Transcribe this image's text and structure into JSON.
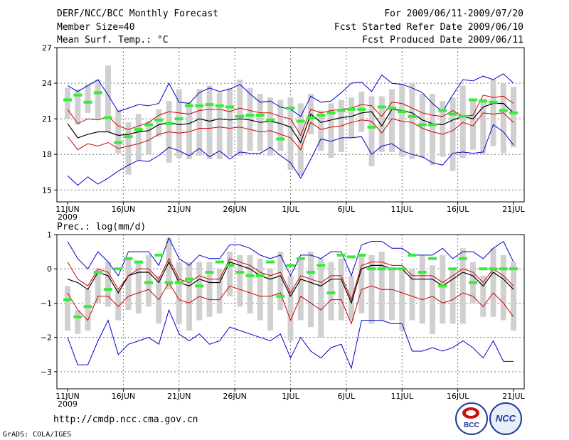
{
  "header": {
    "title": "DERF/NCC/BCC Monthly Forecast",
    "member_size": "Member Size=40",
    "variable": "Mean Surf. Temp.: °C",
    "period": "For 2009/06/11-2009/07/20",
    "fcst_started": "Fcst Started Refer Date 2009/06/10",
    "fcst_produced": "Fcst Produced Date 2009/06/11"
  },
  "footer": {
    "url": "http://cmdp.ncc.cma.gov.cn",
    "grads_credit": "GrADS: COLA/IGES",
    "logo_bcc": "BCC",
    "logo_ncc": "NCC"
  },
  "colors": {
    "mean": "#000000",
    "spread": "#cc0000",
    "extreme": "#0000cc",
    "box": "#d0d0d0",
    "obs": "#33ee33",
    "grid": "#777777"
  },
  "chart_data": [
    {
      "type": "line",
      "title": "Mean Surf. Temp.: °C",
      "x_tick_labels": [
        "11JUN",
        "16JUN",
        "21JUN",
        "26JUN",
        "1JUL",
        "6JUL",
        "11JUL",
        "16JUL",
        "21JUL"
      ],
      "x_year_label": "2009",
      "xlim": [
        0,
        40
      ],
      "ylim": [
        14,
        27
      ],
      "y_ticks": [
        15,
        18,
        21,
        24,
        27
      ],
      "series": [
        {
          "name": "ensemble max",
          "values": [
            16.2,
            15.4,
            16.1,
            15.5,
            16.0,
            16.6,
            17.1,
            17.5,
            17.4,
            17.9,
            18.6,
            18.3,
            17.9,
            18.5,
            17.8,
            18.3,
            17.6,
            18.2,
            18.1,
            18.1,
            18.6,
            17.9,
            17.3,
            16.0,
            17.6,
            19.3,
            19.1,
            19.4,
            19.4,
            19.5,
            18.0,
            18.7,
            18.9,
            18.3,
            18.0,
            17.8,
            17.3,
            17.1,
            18.1,
            18.2,
            18.1,
            18.2,
            20.5,
            19.9,
            18.8
          ]
        },
        {
          "name": "ensemble upper",
          "values": [
            21.8,
            20.6,
            21.0,
            20.9,
            21.2,
            20.4,
            20.1,
            20.4,
            20.7,
            21.3,
            21.6,
            21.5,
            21.4,
            21.7,
            21.8,
            21.8,
            21.6,
            21.9,
            21.7,
            21.5,
            21.5,
            21.2,
            21.0,
            19.6,
            21.8,
            21.5,
            21.7,
            21.8,
            21.9,
            22.2,
            22.1,
            21.2,
            22.4,
            22.3,
            21.9,
            21.5,
            21.3,
            21.2,
            21.7,
            21.2,
            21.3,
            23.0,
            22.8,
            22.9,
            22.3
          ]
        },
        {
          "name": "ensemble mean",
          "values": [
            20.6,
            19.4,
            19.7,
            19.9,
            19.9,
            19.6,
            19.7,
            19.9,
            20.0,
            20.5,
            20.7,
            20.5,
            20.6,
            21.0,
            20.8,
            21.0,
            20.9,
            21.0,
            20.9,
            20.7,
            20.8,
            20.6,
            20.3,
            19.0,
            21.4,
            20.7,
            20.9,
            21.1,
            21.2,
            21.5,
            21.6,
            20.4,
            21.8,
            21.7,
            21.5,
            20.9,
            20.6,
            20.5,
            20.9,
            21.2,
            21.0,
            22.0,
            22.3,
            22.3,
            21.5
          ]
        },
        {
          "name": "ensemble lower",
          "values": [
            19.5,
            18.4,
            18.9,
            18.7,
            19.0,
            18.5,
            18.7,
            18.9,
            19.2,
            19.7,
            19.9,
            19.8,
            19.9,
            20.2,
            20.2,
            20.3,
            20.2,
            20.3,
            20.1,
            19.9,
            20.0,
            19.7,
            19.4,
            18.4,
            20.7,
            20.1,
            20.3,
            20.4,
            20.7,
            20.9,
            20.8,
            19.8,
            21.0,
            20.8,
            20.7,
            20.2,
            19.9,
            19.7,
            20.0,
            20.7,
            20.4,
            21.5,
            21.4,
            21.5,
            20.7
          ]
        },
        {
          "name": "ensemble min",
          "values": [
            23.8,
            23.3,
            23.8,
            24.3,
            23.0,
            21.6,
            21.9,
            22.2,
            22.1,
            22.3,
            24.0,
            22.4,
            22.3,
            23.2,
            23.6,
            23.3,
            23.5,
            23.9,
            23.1,
            22.4,
            22.5,
            22.0,
            21.8,
            21.2,
            22.9,
            22.4,
            22.5,
            23.2,
            24.0,
            24.1,
            23.3,
            24.7,
            24.0,
            23.9,
            23.6,
            23.2,
            22.3,
            21.6,
            23.0,
            24.3,
            24.2,
            24.6,
            24.3,
            24.8,
            24.0
          ]
        },
        {
          "name": "box low",
          "values": [
            21.0,
            20.5,
            21.5,
            20.9,
            19.9,
            18.1,
            16.3,
            17.5,
            18.0,
            19.5,
            17.3,
            17.7,
            17.6,
            17.9,
            17.6,
            17.6,
            17.8,
            17.9,
            18.3,
            18.3,
            17.9,
            18.3,
            16.7,
            16.2,
            19.7,
            18.3,
            17.7,
            18.2,
            19.4,
            19.9,
            17.0,
            18.2,
            18.2,
            17.8,
            17.6,
            17.7,
            17.1,
            17.8,
            16.6,
            17.7,
            18.4,
            18.0,
            18.7,
            18.1,
            18.6
          ]
        },
        {
          "name": "box high",
          "values": [
            23.6,
            23.5,
            23.9,
            24.3,
            25.5,
            21.8,
            20.7,
            21.4,
            20.8,
            21.8,
            22.5,
            23.5,
            22.4,
            23.5,
            23.8,
            23.2,
            23.6,
            24.3,
            23.6,
            23.1,
            22.8,
            22.6,
            22.8,
            22.3,
            23.1,
            21.7,
            22.3,
            22.6,
            22.8,
            23.3,
            22.9,
            22.9,
            23.5,
            24.0,
            24.0,
            23.1,
            23.1,
            22.5,
            22.8,
            23.8,
            22.7,
            22.7,
            24.3,
            24.0,
            23.7
          ]
        },
        {
          "name": "observation",
          "values": [
            22.6,
            23.0,
            22.4,
            23.2,
            21.1,
            19.0,
            19.5,
            20.1,
            20.5,
            20.9,
            20.6,
            21.0,
            22.1,
            22.1,
            22.2,
            22.1,
            22.0,
            21.2,
            21.3,
            21.3,
            20.9,
            19.3,
            21.9,
            20.8,
            21.1,
            21.3,
            21.5,
            21.7,
            21.8,
            21.8,
            20.3,
            22.0,
            21.9,
            21.6,
            21.2,
            20.5,
            20.5,
            21.7,
            21.4,
            21.2,
            22.6,
            22.5,
            22.4,
            21.7,
            21.5
          ]
        }
      ]
    },
    {
      "type": "line",
      "title": "Prec.: log(mm/d)",
      "x_tick_labels": [
        "11JUN",
        "16JUN",
        "21JUN",
        "26JUN",
        "1JUL",
        "6JUL",
        "11JUL",
        "16JUL",
        "21JUL"
      ],
      "x_year_label": "2009",
      "xlim": [
        0,
        40
      ],
      "ylim": [
        -3.5,
        1.0
      ],
      "y_ticks": [
        -3,
        -2,
        -1,
        0,
        1
      ],
      "series": [
        {
          "name": "ensemble max",
          "values": [
            -2.0,
            -2.8,
            -2.8,
            -2.1,
            -1.5,
            -2.5,
            -2.2,
            -2.1,
            -2.0,
            -2.2,
            -1.2,
            -1.9,
            -2.1,
            -1.9,
            -2.2,
            -2.1,
            -1.7,
            -1.8,
            -1.9,
            -2.0,
            -2.1,
            -1.9,
            -2.6,
            -2.0,
            -2.4,
            -2.6,
            -2.3,
            -2.2,
            -2.9,
            -1.5,
            -1.5,
            -1.5,
            -1.6,
            -1.6,
            -2.4,
            -2.4,
            -2.3,
            -2.4,
            -2.3,
            -2.1,
            -2.3,
            -2.6,
            -2.1,
            -2.7,
            -2.7
          ]
        },
        {
          "name": "ensemble lower",
          "values": [
            -0.7,
            -1.2,
            -1.5,
            -0.8,
            -0.8,
            -1.1,
            -0.8,
            -0.7,
            -0.6,
            -0.9,
            -0.4,
            -0.9,
            -1.0,
            -0.8,
            -0.9,
            -0.9,
            -0.5,
            -0.6,
            -0.7,
            -0.8,
            -0.8,
            -0.7,
            -1.5,
            -0.8,
            -1.0,
            -1.2,
            -0.9,
            -0.9,
            -1.6,
            -0.6,
            -0.5,
            -0.6,
            -0.6,
            -0.7,
            -0.8,
            -0.9,
            -0.8,
            -1.0,
            -0.9,
            -0.7,
            -0.8,
            -1.1,
            -0.7,
            -1.0,
            -1.4
          ]
        },
        {
          "name": "ensemble mean",
          "values": [
            -0.3,
            -0.4,
            -0.6,
            -0.1,
            -0.2,
            -0.7,
            -0.2,
            -0.1,
            -0.1,
            -0.4,
            0.2,
            -0.4,
            -0.5,
            -0.3,
            -0.4,
            -0.4,
            0.2,
            0.1,
            0.0,
            -0.2,
            -0.3,
            -0.2,
            -0.8,
            -0.3,
            -0.4,
            -0.5,
            -0.3,
            -0.3,
            -1.0,
            0.0,
            0.1,
            0.1,
            0.0,
            0.0,
            -0.3,
            -0.3,
            -0.3,
            -0.5,
            -0.3,
            -0.1,
            -0.2,
            -0.5,
            -0.1,
            -0.3,
            -0.6
          ]
        },
        {
          "name": "ensemble upper",
          "values": [
            0.2,
            -0.3,
            -0.5,
            0.0,
            -0.1,
            -0.6,
            -0.2,
            0.0,
            0.0,
            -0.3,
            0.3,
            -0.3,
            -0.4,
            -0.2,
            -0.3,
            -0.3,
            0.3,
            0.2,
            0.1,
            -0.1,
            -0.2,
            -0.1,
            -0.7,
            -0.2,
            -0.3,
            -0.4,
            -0.2,
            -0.2,
            -0.9,
            0.1,
            0.2,
            0.2,
            0.1,
            0.1,
            -0.2,
            -0.2,
            -0.2,
            -0.4,
            -0.2,
            0.0,
            -0.1,
            -0.4,
            0.0,
            -0.2,
            -0.5
          ]
        },
        {
          "name": "ensemble min",
          "values": [
            0.8,
            0.3,
            0.0,
            0.5,
            0.2,
            -0.2,
            0.5,
            0.5,
            0.5,
            0.1,
            0.9,
            0.3,
            0.1,
            0.4,
            0.3,
            0.3,
            0.7,
            0.7,
            0.6,
            0.4,
            0.3,
            0.4,
            -0.2,
            0.4,
            0.4,
            0.3,
            0.5,
            0.5,
            -0.2,
            0.7,
            0.8,
            0.8,
            0.6,
            0.6,
            0.4,
            0.4,
            0.4,
            0.6,
            0.3,
            0.5,
            0.5,
            0.3,
            0.6,
            0.8,
            0.2
          ]
        },
        {
          "name": "box low",
          "values": [
            -1.8,
            -1.9,
            -1.8,
            -1.0,
            -1.1,
            -1.5,
            -1.2,
            -1.3,
            -1.1,
            -1.6,
            -0.6,
            -1.6,
            -1.8,
            -1.5,
            -1.4,
            -1.3,
            -0.8,
            -1.1,
            -1.3,
            -1.5,
            -1.8,
            -1.2,
            -2.1,
            -1.5,
            -1.7,
            -2.0,
            -1.5,
            -1.5,
            -1.5,
            -1.3,
            -1.6,
            -1.5,
            -1.5,
            -1.8,
            -1.5,
            -1.6,
            -1.9,
            -1.6,
            -1.6,
            -1.6,
            -1.0,
            -1.4,
            -1.4,
            -1.5,
            -1.8
          ]
        },
        {
          "name": "box high",
          "values": [
            -0.5,
            -1.2,
            -0.6,
            0.0,
            0.2,
            -0.6,
            0.3,
            0.2,
            0.4,
            -0.2,
            0.9,
            0.2,
            0.2,
            0.2,
            0.2,
            0.0,
            0.5,
            0.4,
            0.4,
            0.3,
            0.0,
            0.5,
            -0.2,
            0.3,
            0.5,
            0.3,
            0.2,
            0.3,
            -0.2,
            0.4,
            0.4,
            0.5,
            0.0,
            0.0,
            0.0,
            0.4,
            0.1,
            0.4,
            0.0,
            0.6,
            0.2,
            -0.2,
            0.6,
            0.4,
            0.2
          ]
        },
        {
          "name": "observation",
          "values": [
            -0.9,
            -1.4,
            -1.1,
            -0.1,
            -0.6,
            0.0,
            0.3,
            0.2,
            -0.4,
            0.4,
            -0.4,
            -0.4,
            -0.3,
            -0.5,
            -0.1,
            0.2,
            0.1,
            -0.1,
            -0.2,
            -0.2,
            0.2,
            -0.8,
            0.1,
            0.3,
            -0.1,
            0.1,
            -0.7,
            0.4,
            0.35,
            0.4,
            0.0,
            0.0,
            0.0,
            0.0,
            0.4,
            -0.1,
            0.3,
            -0.5,
            0.0,
            0.3,
            -0.4,
            0.0,
            0.0,
            0.0,
            0.0
          ]
        }
      ]
    }
  ]
}
